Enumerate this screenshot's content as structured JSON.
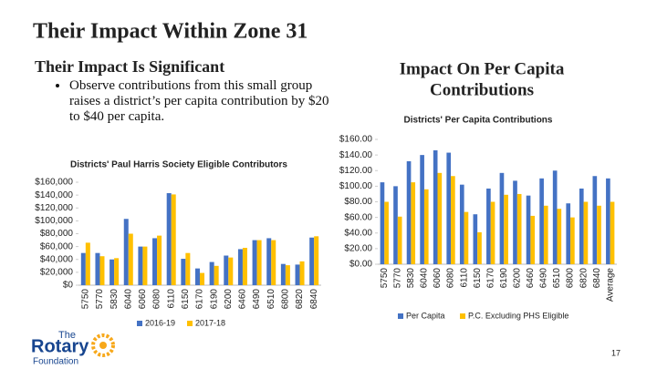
{
  "slide": {
    "title": "Their Impact Within Zone 31",
    "left_heading": "Their Impact Is Significant",
    "bullet": "Observe contributions from this small group raises a district’s per capita contribution by $20 to $40 per capita.",
    "right_heading": [
      "Impact On Per Capita",
      "Contributions"
    ],
    "logo": [
      "The",
      "Rotary",
      "Foundation"
    ],
    "page_number": "17"
  },
  "chart_data": [
    {
      "type": "bar",
      "title": "Districts' Paul Harris Society Eligible Contributors",
      "categories": [
        "5750",
        "5770",
        "5830",
        "6040",
        "6060",
        "6080",
        "6110",
        "6150",
        "6170",
        "6190",
        "6200",
        "6460",
        "6490",
        "6510",
        "6800",
        "6820",
        "6840"
      ],
      "series": [
        {
          "name": "2016-19",
          "color": "#4472c4",
          "values": [
            50000,
            50000,
            40000,
            103000,
            60000,
            73000,
            143000,
            41000,
            26000,
            36000,
            46000,
            56000,
            70000,
            73000,
            33000,
            32000,
            74000
          ]
        },
        {
          "name": "2017-18",
          "color": "#ffc000",
          "values": [
            66000,
            45000,
            42000,
            80000,
            60000,
            77000,
            141000,
            50000,
            19000,
            30000,
            43000,
            58000,
            70000,
            70000,
            31000,
            37000,
            76000
          ]
        }
      ],
      "ylim": [
        0,
        160000
      ],
      "yticks": [
        {
          "value": 0,
          "label": "$0"
        },
        {
          "value": 20000,
          "label": "$20,000"
        },
        {
          "value": 40000,
          "label": "$40,000"
        },
        {
          "value": 60000,
          "label": "$60,000"
        },
        {
          "value": 80000,
          "label": "$80,000"
        },
        {
          "value": 100000,
          "label": "$100,000"
        },
        {
          "value": 120000,
          "label": "$120,000"
        },
        {
          "value": 140000,
          "label": "$140,000"
        },
        {
          "value": 160000,
          "label": "$160,000"
        }
      ],
      "legend": "bottom"
    },
    {
      "type": "bar",
      "title": "Districts' Per Capita Contributions",
      "categories": [
        "5750",
        "5770",
        "5830",
        "6040",
        "6060",
        "6080",
        "6110",
        "6150",
        "6170",
        "6190",
        "6200",
        "6460",
        "6490",
        "6510",
        "6800",
        "6820",
        "6840",
        "Average"
      ],
      "series": [
        {
          "name": "Per Capita",
          "color": "#4472c4",
          "values": [
            105,
            100,
            132,
            140,
            146,
            143,
            102,
            64,
            97,
            117,
            107,
            88,
            110,
            120,
            78,
            97,
            113,
            110
          ]
        },
        {
          "name": "P.C. Excluding PHS Eligible",
          "color": "#ffc000",
          "values": [
            80,
            61,
            105,
            96,
            117,
            113,
            67,
            41,
            80,
            89,
            90,
            62,
            75,
            71,
            60,
            80,
            75,
            80
          ]
        }
      ],
      "ylim": [
        0,
        160
      ],
      "yticks": [
        {
          "value": 0,
          "label": "$0.00"
        },
        {
          "value": 20,
          "label": "$20.00"
        },
        {
          "value": 40,
          "label": "$40.00"
        },
        {
          "value": 60,
          "label": "$60.00"
        },
        {
          "value": 80,
          "label": "$80.00"
        },
        {
          "value": 100,
          "label": "$100.00"
        },
        {
          "value": 120,
          "label": "$120.00"
        },
        {
          "value": 140,
          "label": "$140.00"
        },
        {
          "value": 160,
          "label": "$160.00"
        }
      ],
      "legend": "bottom"
    }
  ]
}
